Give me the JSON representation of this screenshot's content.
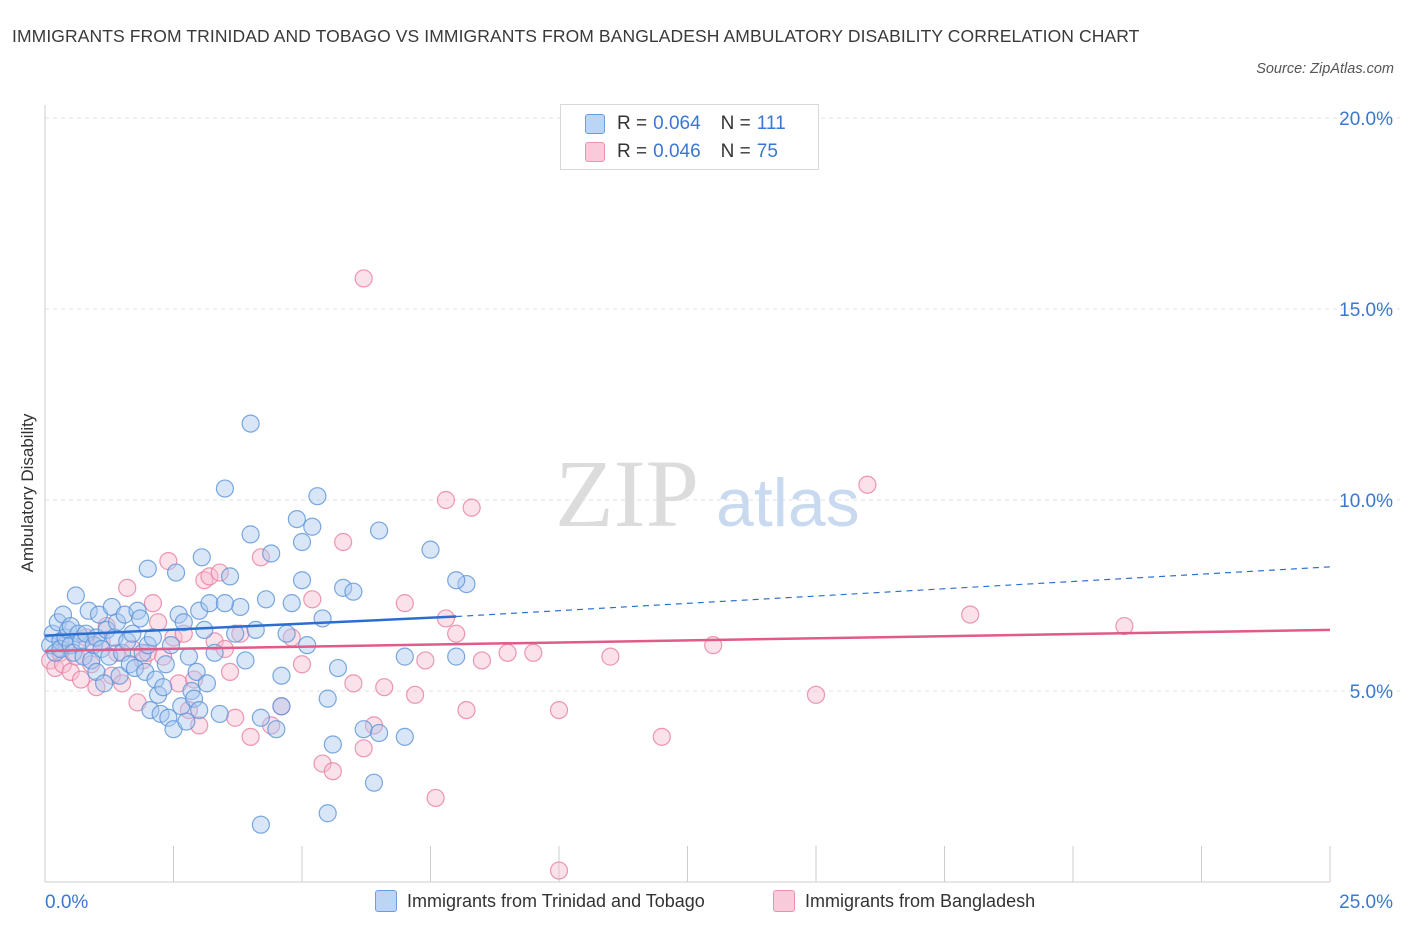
{
  "title": "IMMIGRANTS FROM TRINIDAD AND TOBAGO VS IMMIGRANTS FROM BANGLADESH AMBULATORY DISABILITY CORRELATION CHART",
  "source": "Source: ZipAtlas.com",
  "watermark": {
    "zip": "ZIP",
    "atlas": "atlas"
  },
  "legend_top": [
    {
      "r_label": "R = ",
      "r_value": "0.064",
      "n_label": "N = ",
      "n_value": "111"
    },
    {
      "r_label": "R = ",
      "r_value": "0.046",
      "n_label": "N = ",
      "n_value": "75"
    }
  ],
  "colors": {
    "blue_fill": "#a8c8f0",
    "blue_stroke": "#5b93d8",
    "blue_line": "#2a6fd0",
    "pink_fill": "#f7bcd0",
    "pink_stroke": "#e87ea0",
    "pink_line": "#e05a8a",
    "axis_label": "#3a78d0",
    "grid": "#e2e2e2"
  },
  "chart_data": {
    "type": "scatter",
    "title": "IMMIGRANTS FROM TRINIDAD AND TOBAGO VS IMMIGRANTS FROM BANGLADESH AMBULATORY DISABILITY CORRELATION CHART",
    "xlabel": "",
    "ylabel": "Ambulatory Disability",
    "xlim": [
      0,
      25
    ],
    "ylim": [
      0,
      20
    ],
    "x_tick_labels": [
      "0.0%",
      "25.0%"
    ],
    "y_ticks": [
      5,
      10,
      15,
      20
    ],
    "y_tick_labels": [
      "5.0%",
      "10.0%",
      "15.0%",
      "20.0%"
    ],
    "grid": "horizontal dashed",
    "legend_position": "top-center and bottom",
    "series": [
      {
        "name": "Immigrants from Trinidad and Tobago",
        "color": "#5b93d8",
        "r": 0.064,
        "n": 111,
        "trend": {
          "x": [
            0,
            8
          ],
          "y": [
            6.45,
            6.95
          ],
          "dashed_to_x": 25,
          "dashed_to_y": 8.25
        },
        "points": [
          [
            0.1,
            6.2
          ],
          [
            0.15,
            6.5
          ],
          [
            0.2,
            6.0
          ],
          [
            0.25,
            6.8
          ],
          [
            0.3,
            6.3
          ],
          [
            0.3,
            6.1
          ],
          [
            0.35,
            7.0
          ],
          [
            0.4,
            6.4
          ],
          [
            0.45,
            6.6
          ],
          [
            0.5,
            6.2
          ],
          [
            0.5,
            6.7
          ],
          [
            0.55,
            6.0
          ],
          [
            0.6,
            7.5
          ],
          [
            0.65,
            6.5
          ],
          [
            0.7,
            6.3
          ],
          [
            0.75,
            5.9
          ],
          [
            0.8,
            6.5
          ],
          [
            0.85,
            7.1
          ],
          [
            0.9,
            5.8
          ],
          [
            0.95,
            6.2
          ],
          [
            1.0,
            6.4
          ],
          [
            1.0,
            5.5
          ],
          [
            1.05,
            7.0
          ],
          [
            1.1,
            6.1
          ],
          [
            1.15,
            5.2
          ],
          [
            1.2,
            6.6
          ],
          [
            1.25,
            5.9
          ],
          [
            1.3,
            7.2
          ],
          [
            1.35,
            6.4
          ],
          [
            1.4,
            6.8
          ],
          [
            1.45,
            5.4
          ],
          [
            1.5,
            6.0
          ],
          [
            1.55,
            7.0
          ],
          [
            1.6,
            6.3
          ],
          [
            1.65,
            5.7
          ],
          [
            1.7,
            6.5
          ],
          [
            1.75,
            5.6
          ],
          [
            1.8,
            7.1
          ],
          [
            1.85,
            6.9
          ],
          [
            1.9,
            6.0
          ],
          [
            1.95,
            5.5
          ],
          [
            2.0,
            6.2
          ],
          [
            2.05,
            4.5
          ],
          [
            2.1,
            6.4
          ],
          [
            2.15,
            5.3
          ],
          [
            2.2,
            4.9
          ],
          [
            2.25,
            4.4
          ],
          [
            2.3,
            5.1
          ],
          [
            2.35,
            5.7
          ],
          [
            2.4,
            4.3
          ],
          [
            2.45,
            6.2
          ],
          [
            2.5,
            4.0
          ],
          [
            2.55,
            8.1
          ],
          [
            2.6,
            7.0
          ],
          [
            2.65,
            4.6
          ],
          [
            2.7,
            6.8
          ],
          [
            2.75,
            4.2
          ],
          [
            2.8,
            5.9
          ],
          [
            2.85,
            5.0
          ],
          [
            2.9,
            4.8
          ],
          [
            2.95,
            5.5
          ],
          [
            3.0,
            7.1
          ],
          [
            3.05,
            8.5
          ],
          [
            3.1,
            6.6
          ],
          [
            3.15,
            5.2
          ],
          [
            3.2,
            7.3
          ],
          [
            3.3,
            6.0
          ],
          [
            3.4,
            4.4
          ],
          [
            3.5,
            10.3
          ],
          [
            3.6,
            8.0
          ],
          [
            3.7,
            6.5
          ],
          [
            3.8,
            7.2
          ],
          [
            3.9,
            5.8
          ],
          [
            4.0,
            9.1
          ],
          [
            4.1,
            6.6
          ],
          [
            4.2,
            4.3
          ],
          [
            4.3,
            7.4
          ],
          [
            4.4,
            8.6
          ],
          [
            4.5,
            4.0
          ],
          [
            4.6,
            5.4
          ],
          [
            4.7,
            6.5
          ],
          [
            4.8,
            7.3
          ],
          [
            4.9,
            9.5
          ],
          [
            5.0,
            8.9
          ],
          [
            5.1,
            6.2
          ],
          [
            5.2,
            9.3
          ],
          [
            5.3,
            10.1
          ],
          [
            5.4,
            6.9
          ],
          [
            5.5,
            4.8
          ],
          [
            5.6,
            3.6
          ],
          [
            5.7,
            5.6
          ],
          [
            5.8,
            7.7
          ],
          [
            6.0,
            7.6
          ],
          [
            6.2,
            4.0
          ],
          [
            6.4,
            2.6
          ],
          [
            6.5,
            9.2
          ],
          [
            7.0,
            5.9
          ],
          [
            7.5,
            8.7
          ],
          [
            8.0,
            5.9
          ],
          [
            8.2,
            7.8
          ],
          [
            3.0,
            4.5
          ],
          [
            3.5,
            7.3
          ],
          [
            4.0,
            12.0
          ],
          [
            4.2,
            1.5
          ],
          [
            4.6,
            4.6
          ],
          [
            5.0,
            7.9
          ],
          [
            5.5,
            1.8
          ],
          [
            6.5,
            3.9
          ],
          [
            7.0,
            3.8
          ],
          [
            8.0,
            7.9
          ],
          [
            2.0,
            8.2
          ]
        ]
      },
      {
        "name": "Immigrants from Bangladesh",
        "color": "#e87ea0",
        "r": 0.046,
        "n": 75,
        "trend": {
          "x": [
            0,
            25
          ],
          "y": [
            6.05,
            6.6
          ]
        },
        "points": [
          [
            0.1,
            5.8
          ],
          [
            0.2,
            5.6
          ],
          [
            0.3,
            6.0
          ],
          [
            0.35,
            5.7
          ],
          [
            0.4,
            6.2
          ],
          [
            0.5,
            5.5
          ],
          [
            0.6,
            5.9
          ],
          [
            0.7,
            5.3
          ],
          [
            0.8,
            6.4
          ],
          [
            0.9,
            5.7
          ],
          [
            1.0,
            5.1
          ],
          [
            1.1,
            6.3
          ],
          [
            1.2,
            6.7
          ],
          [
            1.3,
            5.4
          ],
          [
            1.4,
            6.0
          ],
          [
            1.5,
            5.2
          ],
          [
            1.6,
            7.7
          ],
          [
            1.7,
            6.1
          ],
          [
            1.8,
            4.7
          ],
          [
            1.9,
            5.8
          ],
          [
            2.0,
            6.0
          ],
          [
            2.1,
            7.3
          ],
          [
            2.2,
            6.8
          ],
          [
            2.3,
            5.9
          ],
          [
            2.4,
            8.4
          ],
          [
            2.5,
            6.4
          ],
          [
            2.6,
            5.2
          ],
          [
            2.7,
            6.5
          ],
          [
            2.8,
            4.5
          ],
          [
            2.9,
            5.3
          ],
          [
            3.0,
            4.1
          ],
          [
            3.1,
            7.9
          ],
          [
            3.2,
            8.0
          ],
          [
            3.3,
            6.3
          ],
          [
            3.4,
            8.1
          ],
          [
            3.5,
            6.1
          ],
          [
            3.6,
            5.5
          ],
          [
            3.7,
            4.3
          ],
          [
            3.8,
            6.5
          ],
          [
            4.0,
            3.8
          ],
          [
            4.2,
            8.5
          ],
          [
            4.4,
            4.1
          ],
          [
            4.6,
            4.6
          ],
          [
            4.8,
            6.4
          ],
          [
            5.0,
            5.7
          ],
          [
            5.2,
            7.4
          ],
          [
            5.4,
            3.1
          ],
          [
            5.6,
            2.9
          ],
          [
            5.8,
            8.9
          ],
          [
            6.0,
            5.2
          ],
          [
            6.2,
            3.5
          ],
          [
            6.4,
            4.1
          ],
          [
            6.6,
            5.1
          ],
          [
            7.0,
            7.3
          ],
          [
            7.2,
            4.9
          ],
          [
            7.4,
            5.8
          ],
          [
            7.6,
            2.2
          ],
          [
            7.8,
            6.9
          ],
          [
            8.0,
            6.5
          ],
          [
            8.2,
            4.5
          ],
          [
            8.5,
            5.8
          ],
          [
            9.0,
            6.0
          ],
          [
            9.5,
            6.0
          ],
          [
            10.0,
            4.5
          ],
          [
            11.0,
            5.9
          ],
          [
            12.0,
            3.8
          ],
          [
            13.0,
            6.2
          ],
          [
            15.0,
            4.9
          ],
          [
            16.0,
            10.4
          ],
          [
            18.0,
            7.0
          ],
          [
            21.0,
            6.7
          ],
          [
            7.8,
            10.0
          ],
          [
            8.3,
            9.8
          ],
          [
            6.2,
            15.8
          ],
          [
            10.0,
            0.3
          ]
        ]
      }
    ]
  },
  "legend_bottom": [
    {
      "label": "Immigrants from Trinidad and Tobago"
    },
    {
      "label": "Immigrants from Bangladesh"
    }
  ]
}
